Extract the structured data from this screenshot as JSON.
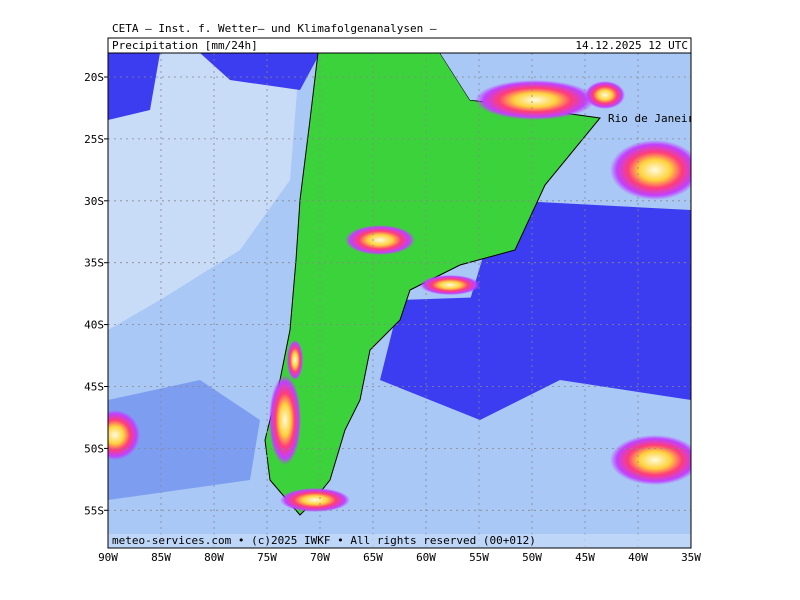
{
  "header": {
    "title": "CETA — Inst. f. Wetter— und Klimafolgenanalysen —",
    "variable": "Precipitation [mm/24h]",
    "valid_time": "14.12.2025 12 UTC"
  },
  "map": {
    "latitude_labels": [
      "20S",
      "25S",
      "30S",
      "35S",
      "40S",
      "45S",
      "50S",
      "55S"
    ],
    "longitude_labels": [
      "90W",
      "85W",
      "80W",
      "75W",
      "70W",
      "65W",
      "60W",
      "55W",
      "50W",
      "45W",
      "40W",
      "35W"
    ],
    "places": [
      {
        "label": "Rio de Janeiro"
      }
    ]
  },
  "footer": {
    "credit": "meteo-services.com • (c)2025 IWKF • All rights reserved (00+012)"
  }
}
